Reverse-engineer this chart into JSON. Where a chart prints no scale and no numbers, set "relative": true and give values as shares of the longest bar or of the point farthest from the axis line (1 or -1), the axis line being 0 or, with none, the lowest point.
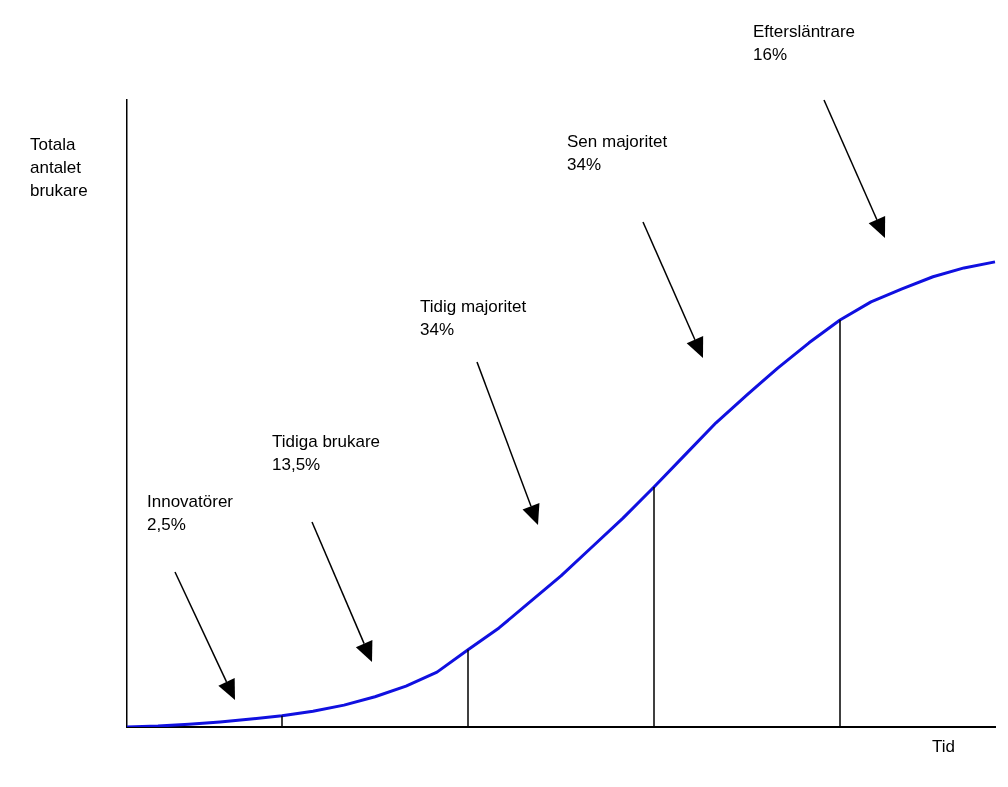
{
  "chart_data": {
    "type": "line",
    "ylabel": "Totala\nantalet\nbrukare",
    "xlabel": "Tid",
    "relative": true,
    "legend": false,
    "grid": false,
    "marker": "none",
    "categories": [
      null,
      null,
      null,
      null,
      null,
      null,
      null,
      null,
      null,
      null,
      null,
      null,
      null,
      null,
      null,
      null,
      null,
      null,
      null,
      null,
      null,
      null,
      null,
      null,
      null,
      null,
      null,
      null,
      null
    ],
    "series": [
      {
        "color": "#1010e0",
        "values": [
          0,
          0.002,
          0.006,
          0.011,
          0.017,
          0.024,
          0.034,
          0.047,
          0.065,
          0.088,
          0.118,
          0.166,
          0.213,
          0.269,
          0.325,
          0.387,
          0.449,
          0.516,
          0.585,
          0.654,
          0.714,
          0.772,
          0.826,
          0.875,
          0.914,
          0.942,
          0.968,
          0.987,
          1
        ]
      }
    ],
    "annotations": [
      "Innovatörer\n2,5%",
      "Tidiga brukare\n13,5%",
      "Tidig majoritet\n34%",
      "Sen majoritet\n34%",
      "Eftersläntrare\n16%"
    ]
  }
}
